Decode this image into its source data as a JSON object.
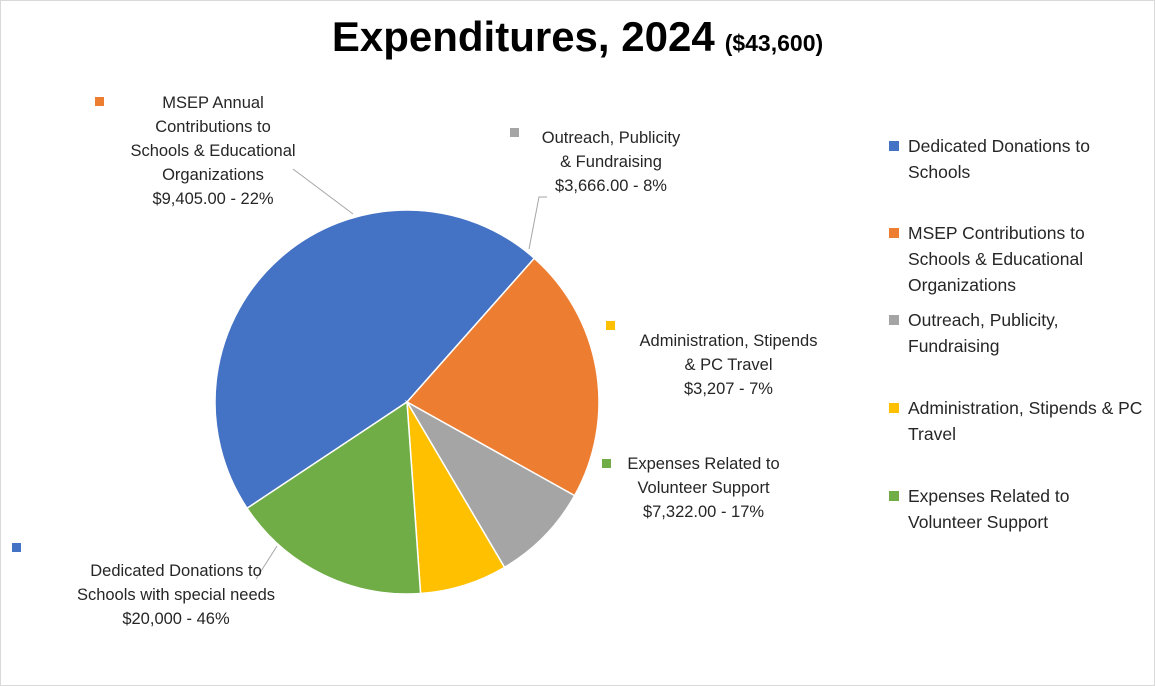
{
  "title": {
    "main": "Expenditures, 2024",
    "total": "($43,600)"
  },
  "chart_data": {
    "type": "pie",
    "title": "Expenditures, 2024 ($43,600)",
    "total": 43600,
    "legend_position": "right",
    "slices": [
      {
        "legend": "Dedicated Donations to Schools",
        "label": "Dedicated Donations to\nSchools with special needs\n$20,000  - 46%",
        "value": 20000,
        "percent": 46,
        "color": "#4472C4"
      },
      {
        "legend": "MSEP Contributions to Schools & Educational Organizations",
        "label": "MSEP Annual\nContributions to\nSchools & Educational\nOrganizations\n$9,405.00  - 22%",
        "value": 9405,
        "percent": 22,
        "color": "#ED7D31"
      },
      {
        "legend": "Outreach, Publicity, Fundraising",
        "label": "Outreach, Publicity\n& Fundraising\n$3,666.00 - 8%",
        "value": 3666,
        "percent": 8,
        "color": "#A5A5A5"
      },
      {
        "legend": "Administration, Stipends & PC Travel",
        "label": "Administration, Stipends\n& PC Travel\n$3,207  - 7%",
        "value": 3207,
        "percent": 7,
        "color": "#FFC000"
      },
      {
        "legend": "Expenses Related to Volunteer Support",
        "label": "Expenses Related to\nVolunteer Support\n$7,322.00  - 17%",
        "value": 7322,
        "percent": 17,
        "color": "#70AD47"
      }
    ]
  }
}
